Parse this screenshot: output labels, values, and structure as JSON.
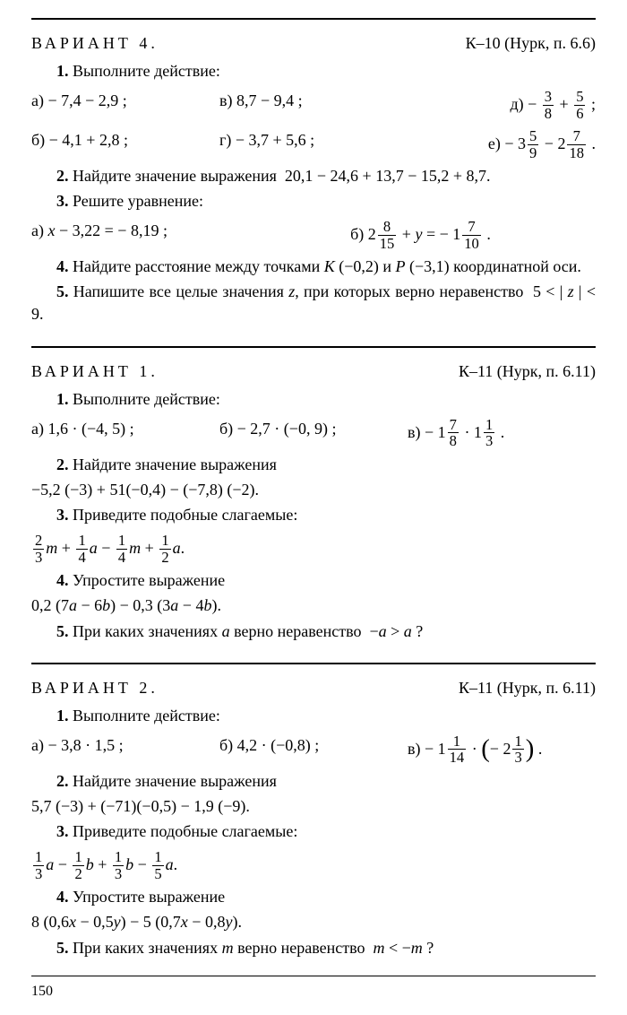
{
  "page_number": "150",
  "rules": {
    "thick": "2.5px",
    "med": "2px",
    "thin": "1px"
  },
  "v4": {
    "title": "ВАРИАНТ  4.",
    "ref": "К–10 (Нурк, п. 6.6)",
    "p1_head": "1. Выполните действие:",
    "a": "а) − 7,4 − 2,9 ;",
    "b": "б) − 4,1 + 2,8 ;",
    "v": "в) 8,7 − 9,4 ;",
    "g": "г) − 3,7 + 5,6 ;",
    "d_pre": "д) − ",
    "d_f1n": "3",
    "d_f1d": "8",
    "d_mid": " + ",
    "d_f2n": "5",
    "d_f2d": "6",
    "d_post": " ;",
    "e_pre": "е) − 3",
    "e_f1n": "5",
    "e_f1d": "9",
    "e_mid": " − 2",
    "e_f2n": "7",
    "e_f2d": "18",
    "e_post": " .",
    "p2": "2. Найдите значение выражения  20,1 − 24,6 + 13,7 − 15,2 + 8,7.",
    "p3": "3. Решите уравнение:",
    "p3a": "а) x − 3,22 = − 8,19 ;",
    "p3b_pre": "б) 2",
    "p3b_f1n": "8",
    "p3b_f1d": "15",
    "p3b_mid": " + y = − 1",
    "p3b_f2n": "7",
    "p3b_f2d": "10",
    "p3b_post": " .",
    "p4": "4. Найдите расстояние между точками K (−0,2) и P (−3,1) координатной оси.",
    "p5": "5. Напишите все целые значения z, при которых верно неравенство  5 < | z | < 9."
  },
  "v1": {
    "title": "ВАРИАНТ  1.",
    "ref": "К–11 (Нурк, п. 6.11)",
    "p1_head": "1. Выполните действие:",
    "a": "а) 1,6 · (−4, 5) ;",
    "b": "б) − 2,7 · (−0, 9) ;",
    "c_pre": "в) − 1",
    "c_f1n": "7",
    "c_f1d": "8",
    "c_mid": " · 1",
    "c_f2n": "1",
    "c_f2d": "3",
    "c_post": " .",
    "p2h": "2. Найдите значение выражения",
    "p2e": "−5,2 (−3) + 51(−0,4) − (−7,8) (−2).",
    "p3h": "3. Приведите подобные слагаемые:",
    "p3_t1n": "2",
    "p3_t1d": "3",
    "p3_v1": "m + ",
    "p3_t2n": "1",
    "p3_t2d": "4",
    "p3_v2": "a − ",
    "p3_t3n": "1",
    "p3_t3d": "4",
    "p3_v3": "m + ",
    "p3_t4n": "1",
    "p3_t4d": "2",
    "p3_v4": "a.",
    "p4h": "4. Упростите выражение",
    "p4e": "0,2 (7a − 6b) − 0,3 (3a − 4b).",
    "p5": "5. При каких значениях a верно неравенство  −a > a ?"
  },
  "v2": {
    "title": "ВАРИАНТ  2.",
    "ref": "К–11 (Нурк, п. 6.11)",
    "p1_head": "1. Выполните действие:",
    "a": "а) − 3,8 · 1,5 ;",
    "b": "б) 4,2 · (−0,8) ;",
    "c_pre": "в) − 1",
    "c_f1n": "1",
    "c_f1d": "14",
    "c_mid": " · ",
    "c_lp": "(",
    "c_neg": "− 2",
    "c_f2n": "1",
    "c_f2d": "3",
    "c_rp": ")",
    "c_post": " .",
    "p2h": "2. Найдите значение выражения",
    "p2e": "5,7 (−3) + (−71)(−0,5) − 1,9 (−9).",
    "p3h": "3. Приведите подобные слагаемые:",
    "p3_t1n": "1",
    "p3_t1d": "3",
    "p3_v1": "a − ",
    "p3_t2n": "1",
    "p3_t2d": "2",
    "p3_v2": "b + ",
    "p3_t3n": "1",
    "p3_t3d": "3",
    "p3_v3": "b − ",
    "p3_t4n": "1",
    "p3_t4d": "5",
    "p3_v4": "a.",
    "p4h": "4. Упростите выражение",
    "p4e": "8 (0,6x − 0,5y) − 5 (0,7x − 0,8y).",
    "p5": "5. При каких значениях m верно неравенство  m < −m ?"
  }
}
